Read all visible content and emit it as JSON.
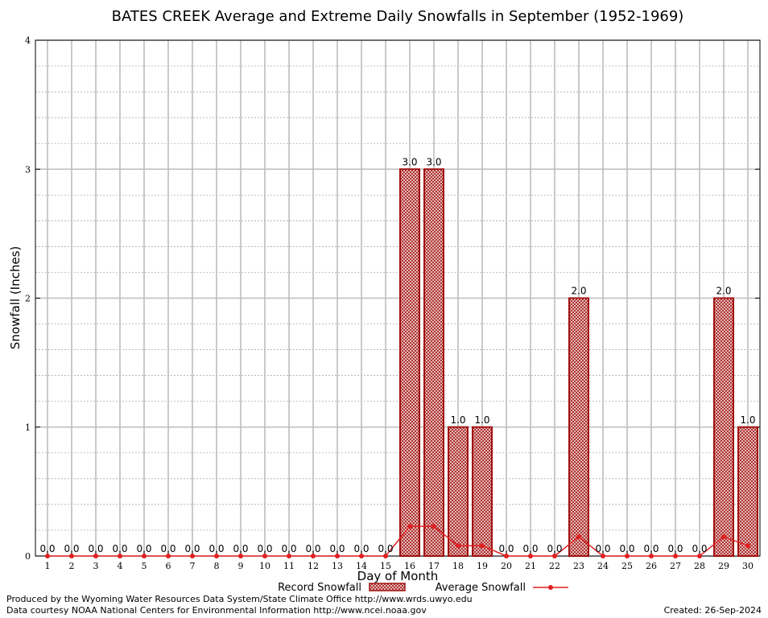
{
  "chart_data": {
    "type": "bar",
    "title": "BATES CREEK Average and Extreme Daily Snowfalls in September (1952-1969)",
    "xlabel": "Day of Month",
    "ylabel": "Snowfall (Inches)",
    "ylim": [
      0,
      4
    ],
    "yticks": [
      "0",
      "1",
      "2",
      "3",
      "4"
    ],
    "categories": [
      "1",
      "2",
      "3",
      "4",
      "5",
      "6",
      "7",
      "8",
      "9",
      "10",
      "11",
      "12",
      "13",
      "14",
      "15",
      "16",
      "17",
      "18",
      "19",
      "20",
      "21",
      "22",
      "23",
      "24",
      "25",
      "26",
      "27",
      "28",
      "29",
      "30"
    ],
    "series": [
      {
        "name": "Record Snowfall",
        "kind": "bar",
        "values": [
          0,
          0,
          0,
          0,
          0,
          0,
          0,
          0,
          0,
          0,
          0,
          0,
          0,
          0,
          0,
          3,
          3,
          1,
          1,
          0,
          0,
          0,
          2,
          0,
          0,
          0,
          0,
          0,
          2,
          1
        ],
        "labels": [
          "0.0",
          "0.0",
          "0.0",
          "0.0",
          "0.0",
          "0.0",
          "0.0",
          "0.0",
          "0.0",
          "0.0",
          "0.0",
          "0.0",
          "0.0",
          "0.0",
          "0.0",
          "3.0",
          "3.0",
          "1.0",
          "1.0",
          "0.0",
          "0.0",
          "0.0",
          "2.0",
          "0.0",
          "0.0",
          "0.0",
          "0.0",
          "0.0",
          "2.0",
          "1.0"
        ],
        "color": "#a01010"
      },
      {
        "name": "Average Snowfall",
        "kind": "line",
        "values": [
          0,
          0,
          0,
          0,
          0,
          0,
          0,
          0,
          0,
          0,
          0,
          0,
          0,
          0,
          0,
          0.23,
          0.23,
          0.08,
          0.08,
          0,
          0,
          0,
          0.15,
          0,
          0,
          0,
          0,
          0,
          0.15,
          0.08
        ],
        "color": "#e02020"
      }
    ],
    "grid": true,
    "legend_position": "bottom-center"
  },
  "footer": {
    "produced_by": "Produced by the Wyoming Water Resources Data System/State Climate Office http://www.wrds.uwyo.edu",
    "data_courtesy": "Data courtesy NOAA National Centers for Environmental Information http://www.ncei.noaa.gov",
    "created": "Created:  26-Sep-2024"
  }
}
